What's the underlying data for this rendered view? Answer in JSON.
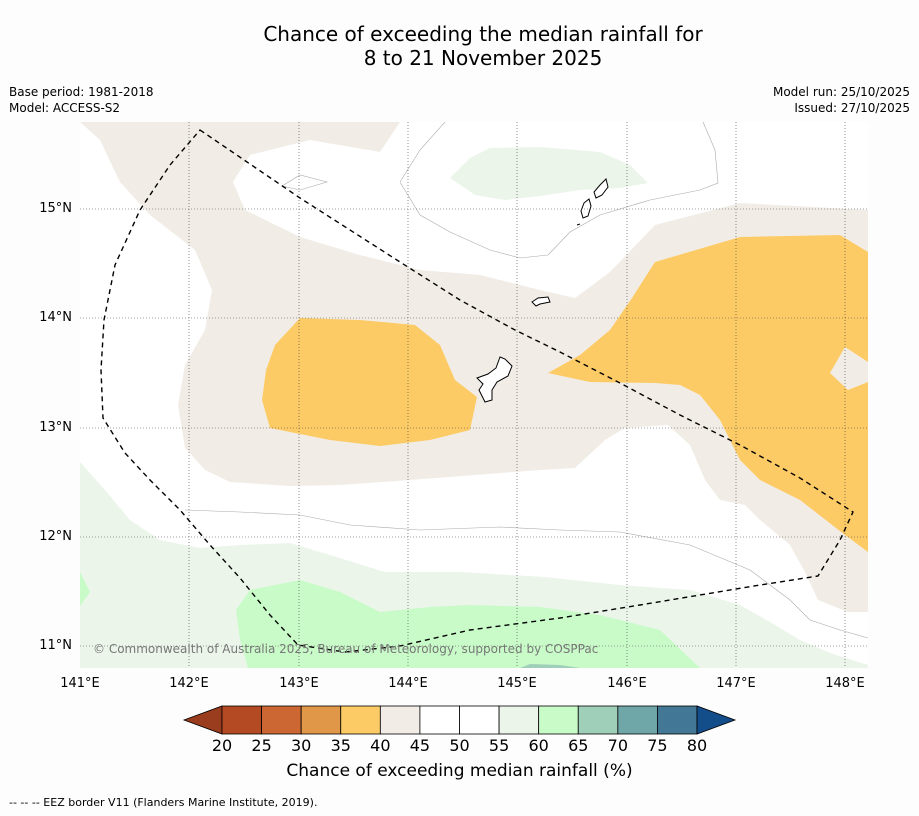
{
  "title_line1": "Chance of exceeding the median rainfall for",
  "title_line2": "8 to 21 November 2025",
  "meta_left": {
    "base_period": "Base period: 1981-2018",
    "model": "Model: ACCESS-S2"
  },
  "meta_right": {
    "model_run": "Model run: 25/10/2025",
    "issued": "Issued: 27/10/2025"
  },
  "lat_labels": [
    "15°N",
    "14°N",
    "13°N",
    "12°N",
    "11°N"
  ],
  "lon_labels": [
    "141°E",
    "142°E",
    "143°E",
    "144°E",
    "145°E",
    "146°E",
    "147°E",
    "148°E"
  ],
  "copyright": "© Commonwealth of Australia 2025, Bureau of Meteorology, supported by COSPPac",
  "colorbar": {
    "ticks": [
      "20",
      "25",
      "30",
      "35",
      "40",
      "45",
      "50",
      "55",
      "60",
      "65",
      "70",
      "75",
      "80"
    ],
    "colors": [
      "#b34a24",
      "#cc6633",
      "#e09848",
      "#fdcb66",
      "#f1ede6",
      "#ffffff",
      "#ffffff",
      "#ebf5ea",
      "#c9fbc9",
      "#9fcfb8",
      "#6fa7a9",
      "#427895"
    ],
    "under_color": "#9a3c1e",
    "over_color": "#144e8a",
    "title": "Chance of exceeding median rainfall (%)"
  },
  "footer": "--  --  -- EEZ border V11 (Flanders Marine Institute, 2019)."
}
